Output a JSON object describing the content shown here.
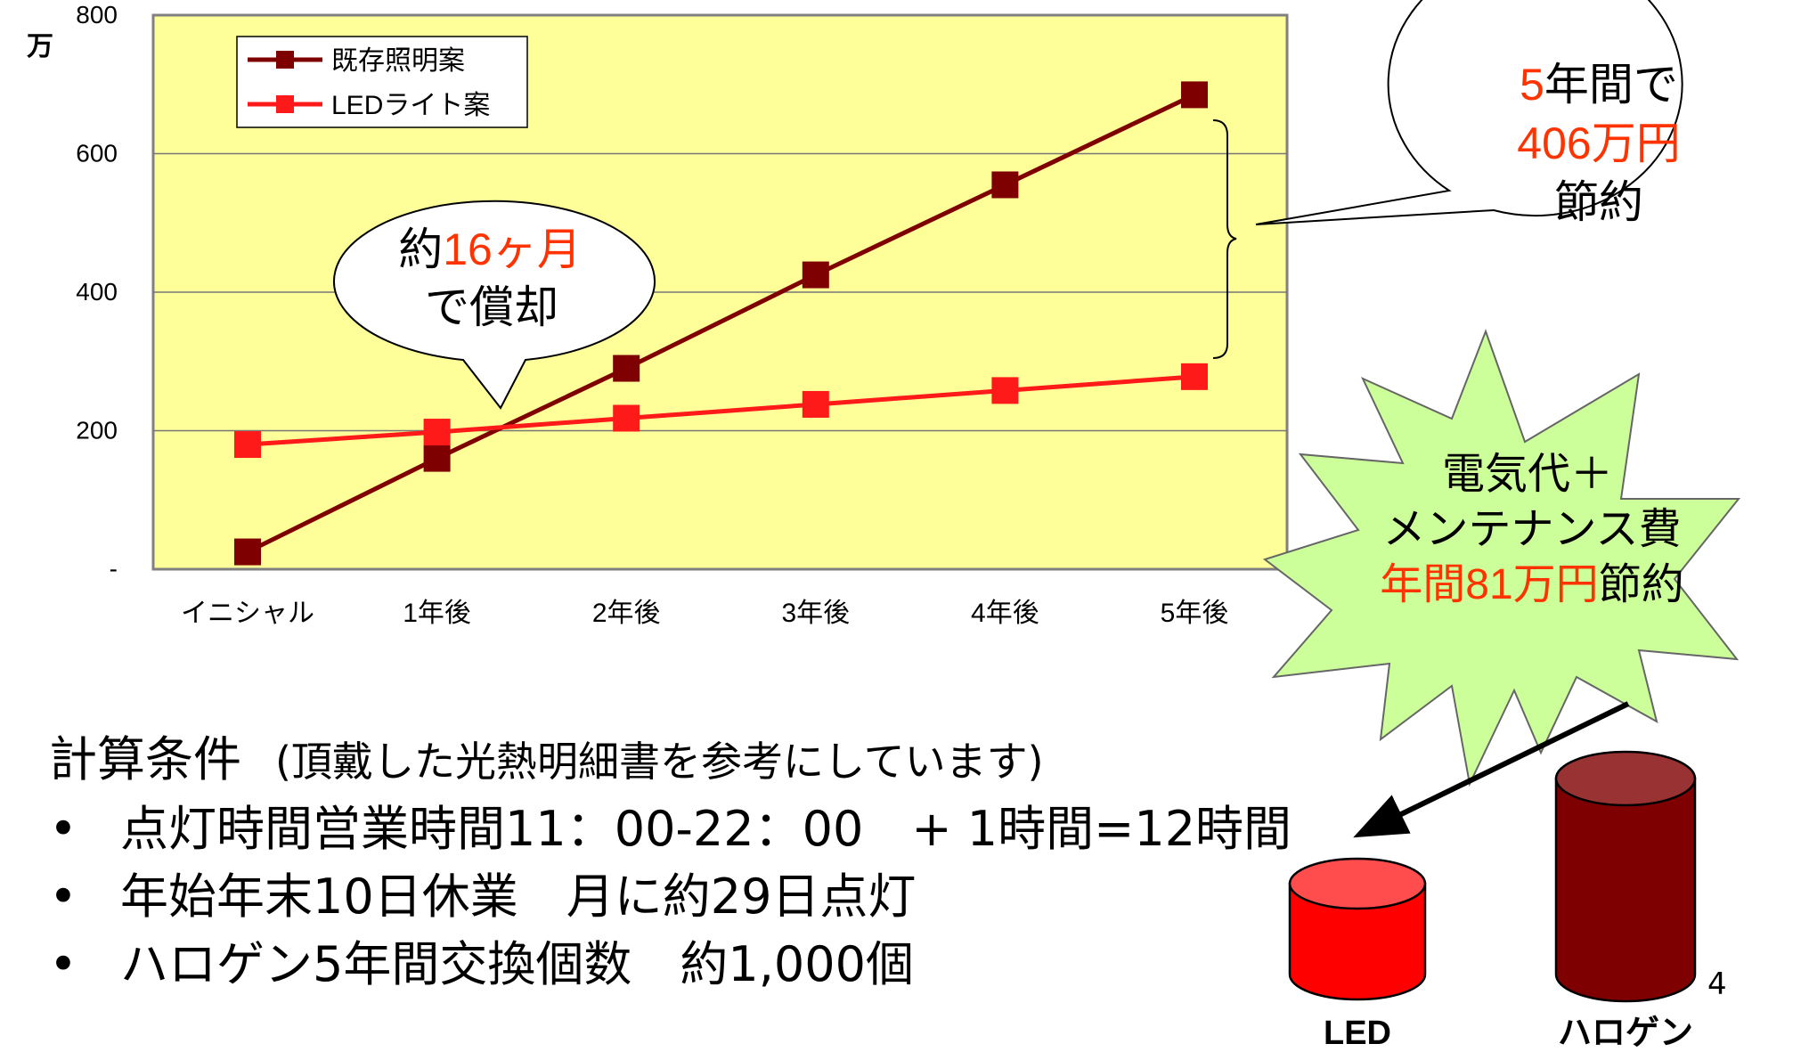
{
  "chart_data": {
    "type": "line",
    "categories": [
      "イニシャル",
      "1年後",
      "2年後",
      "3年後",
      "4年後",
      "5年後"
    ],
    "series": [
      {
        "name": "既存照明案",
        "values": [
          25,
          160,
          290,
          425,
          555,
          685
        ],
        "color": "#7f0000"
      },
      {
        "name": "LEDライト案",
        "values": [
          180,
          198,
          218,
          238,
          258,
          278
        ],
        "color": "#ff1a1a"
      }
    ],
    "ylim": [
      0,
      800
    ],
    "yticks": [
      {
        "value": 0,
        "label": "-"
      },
      {
        "value": 200,
        "label": "200"
      },
      {
        "value": 400,
        "label": "400"
      },
      {
        "value": 600,
        "label": "600"
      },
      {
        "value": 800,
        "label": "800"
      }
    ],
    "yunit": "万",
    "grid": true,
    "legend_position": "top-left",
    "plot_background": "#ffff99"
  },
  "callouts": {
    "payback": {
      "line1_prefix": "約",
      "line1_highlight": "16ヶ月",
      "line2": "で償却"
    },
    "savings_5y": {
      "line1_highlight": "5",
      "line1_suffix": "年間で",
      "line2_highlight": "406万円",
      "line3": "節約"
    },
    "starburst": {
      "line1": "電気代＋",
      "line2": "メンテナンス費",
      "line3_highlight": "年間81万円",
      "line3_suffix": "節約"
    }
  },
  "conditions": {
    "title": "計算条件",
    "note": "(頂戴した光熱明細書を参考にしています)",
    "bullet_symbol": "•",
    "items": [
      "点灯時間営業時間11：00-22：00　+ 1時間=12時間",
      "年始年末10日休業　月に約29日点灯",
      "ハロゲン5年間交換個数　約1,000個"
    ]
  },
  "cylinders": [
    {
      "label": "LED",
      "color": "#ff0000"
    },
    {
      "label": "ハロゲン",
      "color": "#7f0000"
    }
  ],
  "page_number": "4",
  "colors": {
    "highlight": "#ff3300",
    "starburst": "#ccff99",
    "callout_bg": "#ffffff"
  }
}
